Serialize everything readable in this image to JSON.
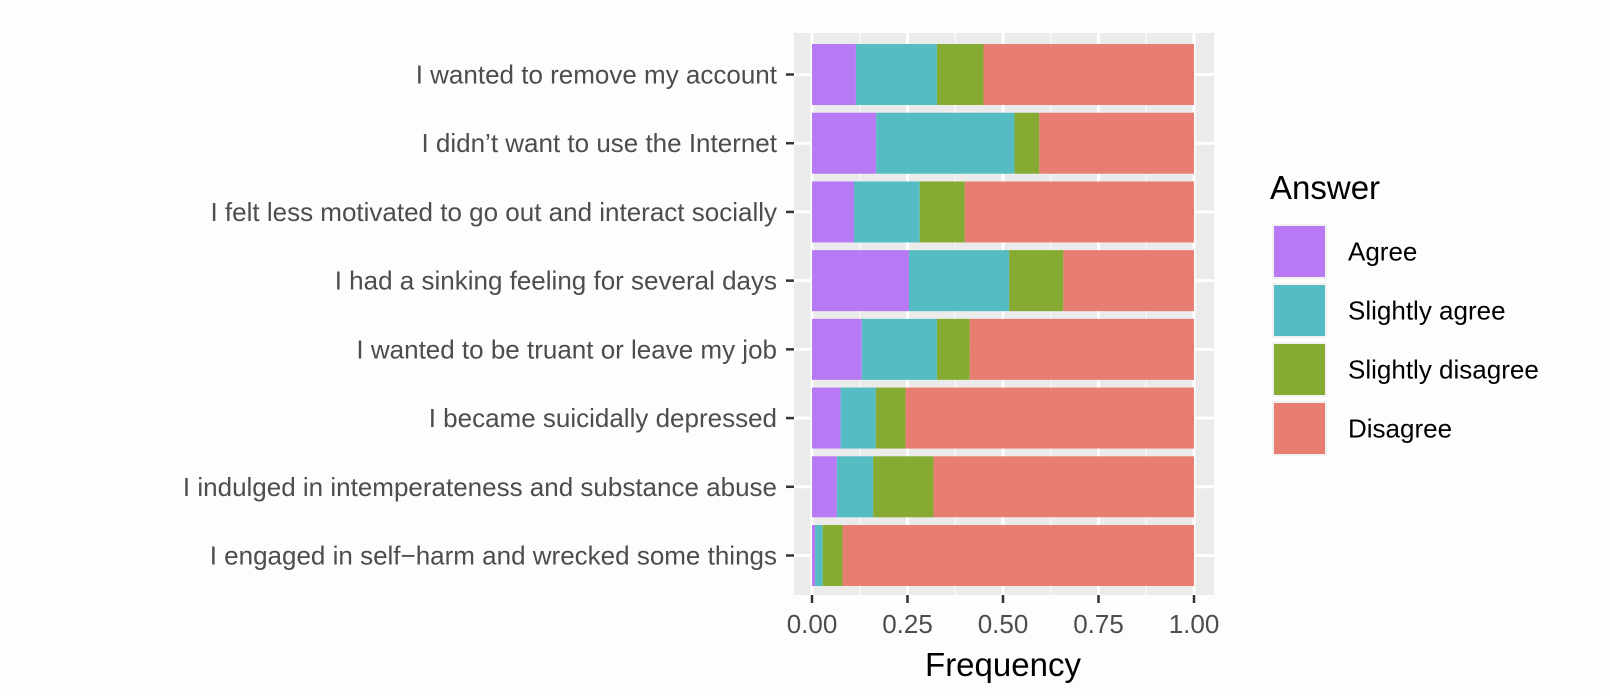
{
  "chart_data": {
    "type": "bar",
    "orientation": "horizontal",
    "stacked": true,
    "xlabel": "Frequency",
    "ylabel": "",
    "xlim": [
      0,
      1
    ],
    "x_ticks": [
      "0.00",
      "0.25",
      "0.50",
      "0.75",
      "1.00"
    ],
    "x_tick_values": [
      0,
      0.25,
      0.5,
      0.75,
      1
    ],
    "grid": true,
    "legend_title": "Answer",
    "legend_position": "right",
    "categories": [
      "I wanted to remove my account",
      "I didn’t want to use the Internet",
      "I felt less motivated to go out and interact socially",
      "I had a sinking feeling for several days",
      "I wanted to be truant or leave my job",
      "I became suicidally depressed",
      "I indulged in intemperateness and substance abuse",
      "I engaged in self−harm and wrecked some things"
    ],
    "series": [
      {
        "name": "Agree",
        "color": "#b77af4",
        "values": [
          0.115,
          0.168,
          0.11,
          0.254,
          0.13,
          0.075,
          0.065,
          0.008
        ]
      },
      {
        "name": "Slightly agree",
        "color": "#55bcc3",
        "values": [
          0.212,
          0.362,
          0.172,
          0.262,
          0.197,
          0.092,
          0.095,
          0.02
        ]
      },
      {
        "name": "Slightly disagree",
        "color": "#86ab33",
        "values": [
          0.122,
          0.065,
          0.118,
          0.142,
          0.086,
          0.078,
          0.158,
          0.052
        ]
      },
      {
        "name": "Disagree",
        "color": "#e87e72",
        "values": [
          0.551,
          0.405,
          0.6,
          0.342,
          0.587,
          0.755,
          0.682,
          0.92
        ]
      }
    ]
  }
}
